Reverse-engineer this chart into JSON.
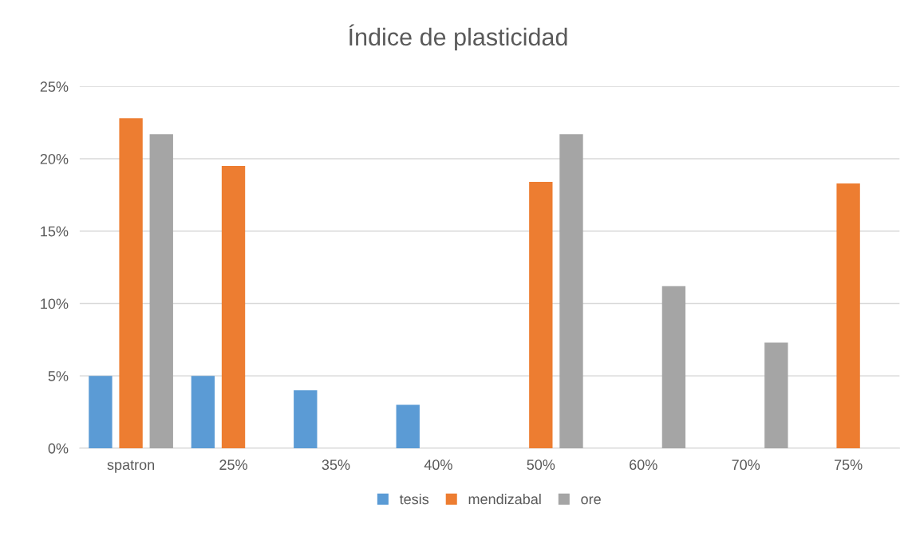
{
  "chart_data": {
    "type": "bar",
    "title": "Índice de plasticidad",
    "categories": [
      "spatron",
      "25%",
      "35%",
      "40%",
      "50%",
      "60%",
      "70%",
      "75%"
    ],
    "series": [
      {
        "name": "tesis",
        "color": "#5b9bd5",
        "values": [
          5,
          5,
          4,
          3,
          null,
          null,
          null,
          null
        ]
      },
      {
        "name": "mendizabal",
        "color": "#ed7d31",
        "values": [
          22.8,
          19.5,
          null,
          null,
          18.4,
          null,
          null,
          18.3
        ]
      },
      {
        "name": "ore",
        "color": "#a5a5a5",
        "values": [
          21.7,
          null,
          null,
          null,
          21.7,
          11.2,
          7.3,
          null
        ]
      }
    ],
    "ylim": [
      0,
      25
    ],
    "yticks": [
      {
        "value": 0,
        "label": "0%"
      },
      {
        "value": 5,
        "label": "5%"
      },
      {
        "value": 10,
        "label": "10%"
      },
      {
        "value": 15,
        "label": "15%"
      },
      {
        "value": 20,
        "label": "20%"
      },
      {
        "value": 25,
        "label": "25%"
      }
    ],
    "grid": "y",
    "legend": "bottom"
  }
}
